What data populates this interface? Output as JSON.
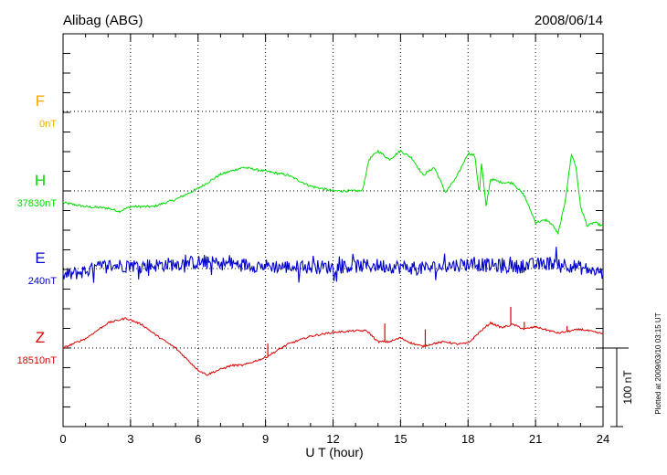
{
  "chart_data": {
    "type": "line",
    "title_left": "Alibag (ABG)",
    "title_right": "2008/06/14",
    "xlabel": "U T (hour)",
    "xlim": [
      0,
      24
    ],
    "x_ticks": [
      "0",
      "3",
      "6",
      "9",
      "12",
      "15",
      "18",
      "21",
      "24"
    ],
    "scale_label": "100 nT",
    "plotted_note": "Plotted at 2009/03/10 03:15 UT",
    "colors": {
      "F": "#f5a800",
      "H": "#00dd00",
      "E": "#0000cc",
      "Z": "#dd0000"
    },
    "series": [
      {
        "name": "F",
        "baseline_label": "0nT",
        "x": [],
        "y": []
      },
      {
        "name": "H",
        "baseline_label": "37830nT",
        "x": [
          0,
          1,
          2,
          2.5,
          3,
          4,
          5,
          6,
          7,
          8,
          9,
          10,
          11,
          12,
          13,
          13.3,
          13.6,
          14,
          14.5,
          15,
          15.5,
          16,
          16.5,
          17,
          17.5,
          18,
          18.3,
          18.5,
          18.6,
          18.8,
          19,
          19.5,
          20,
          20.5,
          21,
          21.5,
          21.8,
          22,
          22.3,
          22.6,
          22.8,
          23,
          23.3,
          23.6,
          24
        ],
        "y": [
          -15,
          -20,
          -22,
          -26,
          -20,
          -20,
          -11,
          3,
          21,
          30,
          25,
          20,
          6,
          0,
          0,
          0,
          40,
          51,
          40,
          51,
          42,
          20,
          30,
          -2,
          18,
          48,
          45,
          -3,
          35,
          -20,
          15,
          11,
          10,
          -6,
          -40,
          -37,
          -45,
          -55,
          -16,
          47,
          30,
          -20,
          -45,
          -40,
          -45
        ]
      },
      {
        "name": "E",
        "baseline_label": "240nT",
        "x": [
          0,
          2,
          4,
          6,
          8,
          10,
          12,
          14,
          16,
          18,
          20,
          22,
          24
        ],
        "y": [
          -10,
          4,
          4,
          8,
          5,
          2,
          2,
          4,
          0,
          6,
          2,
          8,
          -6
        ]
      },
      {
        "name": "Z",
        "baseline_label": "18510nT",
        "x": [
          0,
          1,
          2,
          2.8,
          3.5,
          4.2,
          5,
          6,
          6.4,
          7,
          7.5,
          8,
          8.5,
          9,
          10,
          11,
          12,
          13,
          13.5,
          14,
          14.5,
          15,
          15.5,
          16,
          16.5,
          17,
          17.5,
          18,
          18.5,
          19,
          19.5,
          20,
          20.5,
          21,
          22,
          23,
          24
        ],
        "y": [
          0,
          12,
          32,
          38,
          30,
          15,
          0,
          -28,
          -34,
          -27,
          -22,
          -22,
          -17,
          -12,
          5,
          15,
          20,
          22,
          22,
          8,
          8,
          13,
          6,
          2,
          6,
          8,
          5,
          6,
          20,
          32,
          26,
          30,
          24,
          27,
          19,
          24,
          18
        ]
      }
    ]
  }
}
